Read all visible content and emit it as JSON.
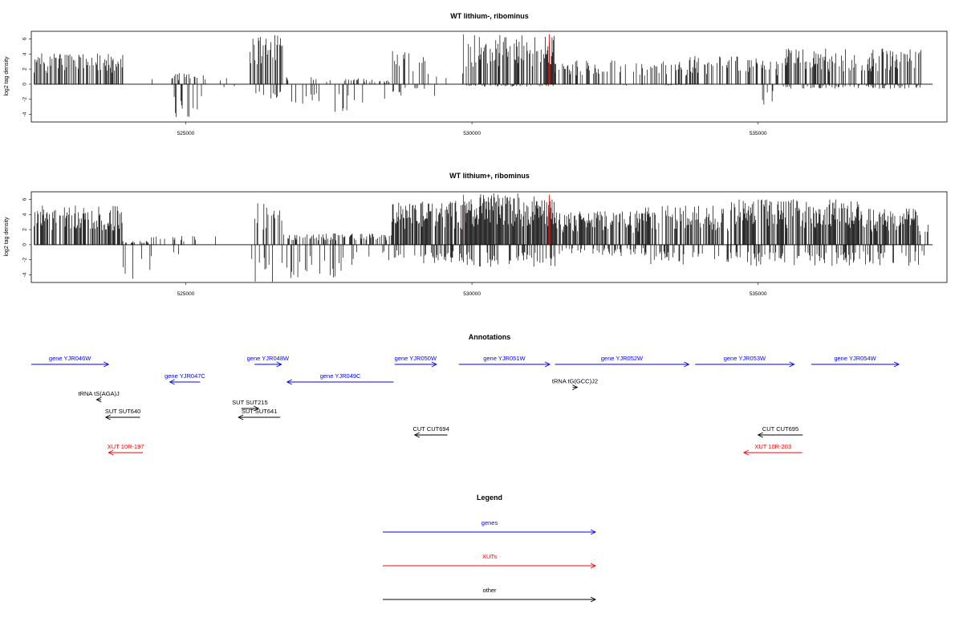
{
  "colors": {
    "gene": "#0000ff",
    "xut": "#ff0000",
    "other": "#000000",
    "marker": "#ff0000"
  },
  "chart_data": [
    {
      "type": "bar",
      "title": "WT lithium-, ribominus",
      "ylabel": "log2 tag density",
      "xlim": [
        522300,
        538300
      ],
      "ylim": [
        -5,
        7
      ],
      "yticks": [
        -4,
        -2,
        0,
        2,
        4,
        6
      ],
      "xticks": [
        525000,
        530000,
        535000
      ],
      "markers_x": [
        529850,
        531350
      ],
      "grid": false
    },
    {
      "type": "bar",
      "title": "WT lithium+, ribominus",
      "ylabel": "log2 tag density",
      "xlim": [
        522300,
        538300
      ],
      "ylim": [
        -5,
        7
      ],
      "yticks": [
        -4,
        -2,
        0,
        2,
        4,
        6
      ],
      "xticks": [
        525000,
        530000,
        535000
      ],
      "markers_x": [
        529850,
        531350
      ],
      "grid": false
    }
  ],
  "annotations": {
    "title": "Annotations",
    "features": [
      {
        "label": "gene YJR046W",
        "kind": "gene",
        "start": 522300,
        "end": 523650,
        "strand": "+",
        "row": 0
      },
      {
        "label": "gene YJR047C",
        "kind": "gene",
        "start": 524720,
        "end": 525250,
        "strand": "-",
        "row": 1
      },
      {
        "label": "gene YJR048W",
        "kind": "gene",
        "start": 526200,
        "end": 526670,
        "strand": "+",
        "row": 0
      },
      {
        "label": "gene YJR049C",
        "kind": "gene",
        "start": 526770,
        "end": 528630,
        "strand": "-",
        "row": 1
      },
      {
        "label": "gene YJR050W",
        "kind": "gene",
        "start": 528650,
        "end": 529380,
        "strand": "+",
        "row": 0
      },
      {
        "label": "gene YJR051W",
        "kind": "gene",
        "start": 529770,
        "end": 531360,
        "strand": "+",
        "row": 0
      },
      {
        "label": "gene YJR052W",
        "kind": "gene",
        "start": 531450,
        "end": 533790,
        "strand": "+",
        "row": 0
      },
      {
        "label": "gene YJR053W",
        "kind": "gene",
        "start": 533900,
        "end": 535630,
        "strand": "+",
        "row": 0
      },
      {
        "label": "gene YJR054W",
        "kind": "gene",
        "start": 535930,
        "end": 537460,
        "strand": "+",
        "row": 0
      },
      {
        "label": "tRNA tS(AGA)J",
        "kind": "other",
        "start": 523440,
        "end": 523520,
        "strand": "-",
        "row": 2
      },
      {
        "label": "tRNA tG(GCC)J2",
        "kind": "other",
        "start": 531760,
        "end": 531840,
        "strand": "+",
        "row": 1.3
      },
      {
        "label": "SUT SUT640",
        "kind": "other",
        "start": 523600,
        "end": 524200,
        "strand": "-",
        "row": 3
      },
      {
        "label": "SUT SUT215",
        "kind": "other",
        "start": 525970,
        "end": 526270,
        "strand": "+",
        "row": 2.5
      },
      {
        "label": "SUT SUT641",
        "kind": "other",
        "start": 525920,
        "end": 526650,
        "strand": "-",
        "row": 3
      },
      {
        "label": "CUT CUT694",
        "kind": "other",
        "start": 529000,
        "end": 529570,
        "strand": "-",
        "row": 4
      },
      {
        "label": "CUT CUT695",
        "kind": "other",
        "start": 535000,
        "end": 535780,
        "strand": "-",
        "row": 4
      },
      {
        "label": "XUT 10R-197",
        "kind": "xut",
        "start": 523650,
        "end": 524250,
        "strand": "-",
        "row": 5
      },
      {
        "label": "XUT 10R-203",
        "kind": "xut",
        "start": 534750,
        "end": 535770,
        "strand": "-",
        "row": 5
      }
    ]
  },
  "legend": {
    "title": "Legend",
    "items": [
      {
        "label": "genes",
        "kind": "gene"
      },
      {
        "label": "XUTs",
        "kind": "xut"
      },
      {
        "label": "other",
        "kind": "other"
      }
    ]
  }
}
